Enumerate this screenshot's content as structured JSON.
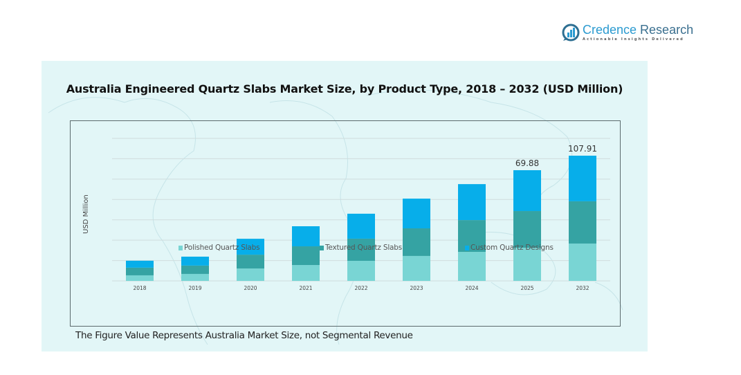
{
  "brand": {
    "name_part1": "Credence",
    "name_part2": " Research",
    "tagline": "Actionable Insights Delivered"
  },
  "footnote": "The Figure Value Represents Australia Market Size, not Segmental Revenue",
  "colors": {
    "panel_bg": "#e2f6f7",
    "polished": "#79d5d4",
    "textured": "#35a3a3",
    "custom": "#07aeea"
  },
  "chart_data": {
    "type": "bar",
    "stacked": true,
    "title": "Australia Engineered Quartz Slabs Market Size, by Product Type, 2018 – 2032 (USD Million)",
    "xlabel": "",
    "ylabel": "USD Million",
    "categories": [
      "2018",
      "2019",
      "2020",
      "2021",
      "2022",
      "2023",
      "2024",
      "2025",
      "2032"
    ],
    "series": [
      {
        "name": "Polished Quartz Slabs",
        "color": "#79d5d4",
        "values": [
          4.8,
          6.0,
          10.7,
          13.7,
          17.3,
          21.5,
          25.0,
          28.6,
          32.2
        ]
      },
      {
        "name": "Textured Quartz Slabs",
        "color": "#35a3a3",
        "values": [
          6.6,
          7.2,
          11.9,
          16.1,
          19.1,
          23.8,
          27.4,
          31.6,
          36.4
        ]
      },
      {
        "name": "Custom Quartz Designs",
        "color": "#07aeea",
        "values": [
          6.0,
          7.7,
          13.7,
          17.3,
          21.5,
          25.6,
          31.0,
          35.2,
          39.3
        ]
      }
    ],
    "data_labels": [
      {
        "category": "2025",
        "text": "69.88"
      },
      {
        "category": "2032",
        "text": "107.91"
      }
    ],
    "ylim": [
      0,
      125
    ],
    "gridlines": 7,
    "grid": true,
    "y_tick_labels_shown": false,
    "legend_position": "bottom"
  }
}
